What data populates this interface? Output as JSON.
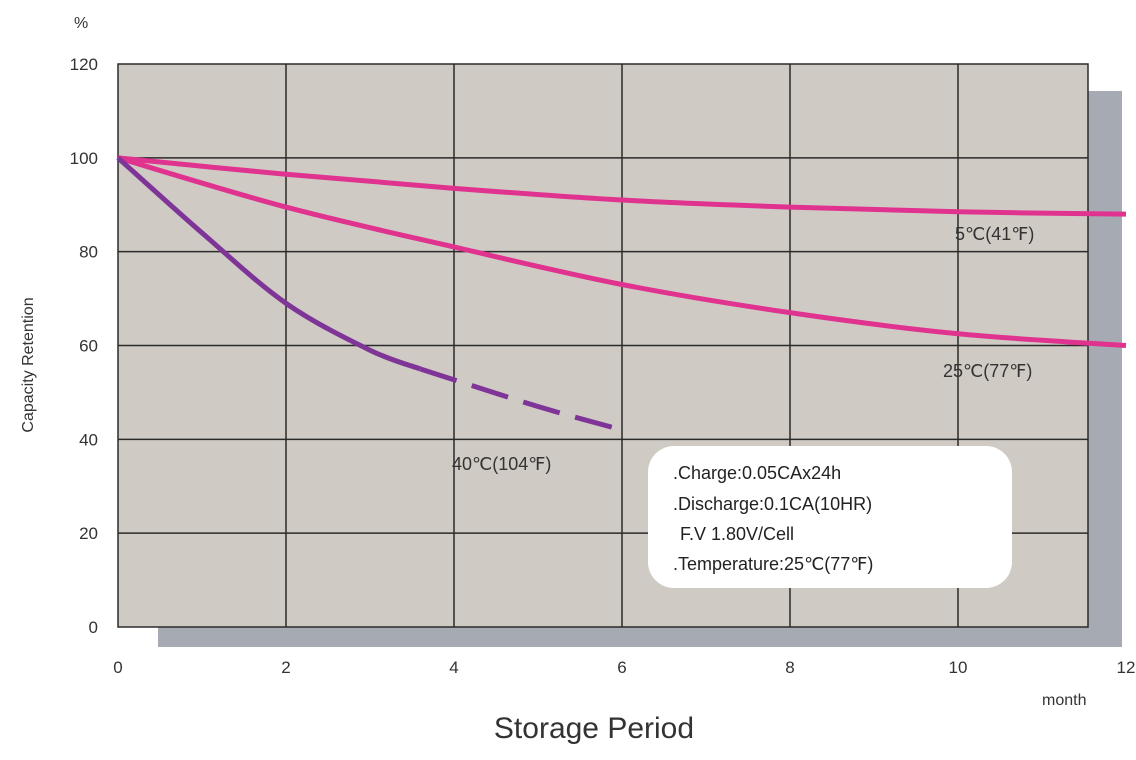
{
  "chart_data": {
    "type": "line",
    "xlabel": "Storage Period",
    "x_unit": "month",
    "ylabel": "Capacity Retention",
    "y_unit": "%",
    "xlim": [
      0,
      12
    ],
    "ylim": [
      0,
      120
    ],
    "x_ticks": [
      0,
      2,
      4,
      6,
      8,
      10,
      12
    ],
    "y_ticks": [
      0,
      20,
      40,
      60,
      80,
      100,
      120
    ],
    "grid": true,
    "series": [
      {
        "name": "5℃(41℉)",
        "color": "#e0338f",
        "dash": false,
        "points": [
          [
            0,
            100
          ],
          [
            2,
            96.5
          ],
          [
            4,
            93.5
          ],
          [
            6,
            91
          ],
          [
            8,
            89.5
          ],
          [
            10,
            88.5
          ],
          [
            12,
            88
          ]
        ]
      },
      {
        "name": "25℃(77℉)",
        "color": "#e0338f",
        "dash": false,
        "points": [
          [
            0,
            100
          ],
          [
            2,
            89.5
          ],
          [
            4,
            81
          ],
          [
            6,
            73
          ],
          [
            8,
            67
          ],
          [
            10,
            62.5
          ],
          [
            12,
            60
          ]
        ]
      },
      {
        "name": "40℃(104℉)",
        "color": "#7f3597",
        "dash": false,
        "points": [
          [
            0,
            100
          ],
          [
            1,
            84
          ],
          [
            2,
            69
          ],
          [
            3,
            59
          ],
          [
            3.6,
            55
          ]
        ]
      },
      {
        "name": "",
        "color": "#7f3597",
        "dash": true,
        "points": [
          [
            3.6,
            55
          ],
          [
            5,
            47
          ],
          [
            6,
            42
          ]
        ]
      }
    ],
    "series_labels": [
      {
        "text": "5℃(41℉)"
      },
      {
        "text": "25℃(77℉)"
      },
      {
        "text": "40℃(104℉)"
      }
    ],
    "notes": [
      ".Charge:0.05CAx24h",
      ".Discharge:0.1CA(10HR)",
      "F.V 1.80V/Cell",
      ".Temperature:25℃(77℉)"
    ],
    "colors": {
      "plot_background": "#cfcbc4",
      "shadow": "#a6aab3",
      "grid": "#2b2b2b"
    }
  }
}
